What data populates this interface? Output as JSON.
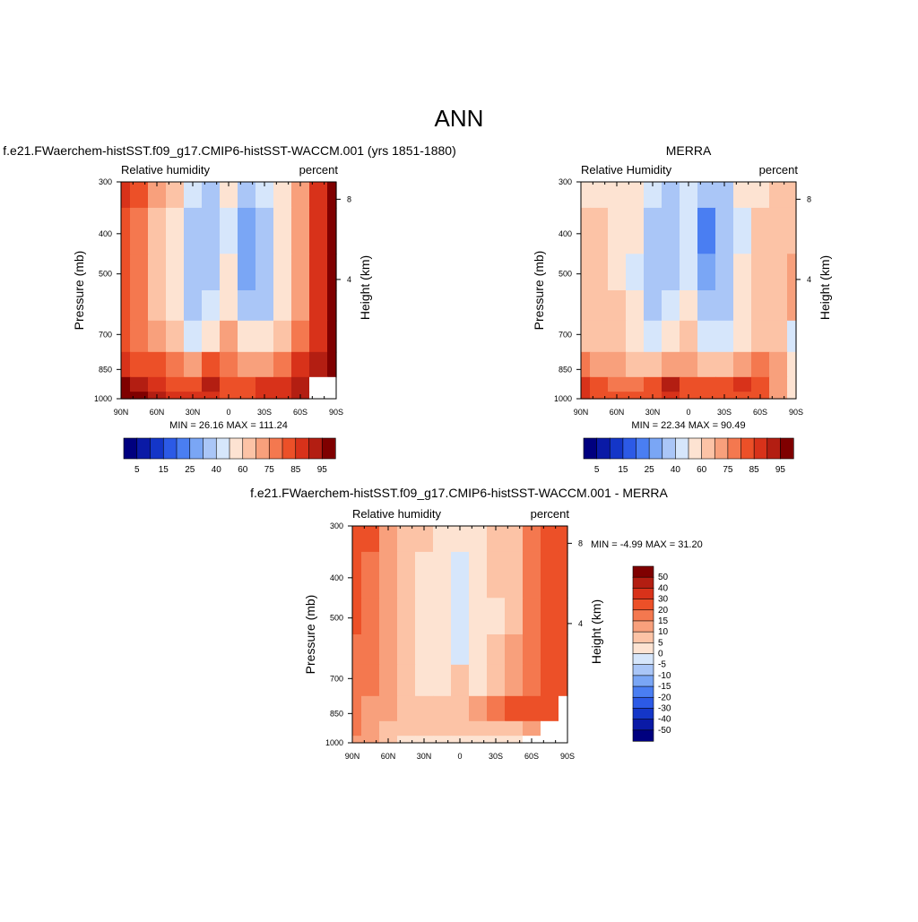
{
  "figure": {
    "title": "ANN"
  },
  "palettes": {
    "abs": [
      "#00007f",
      "#0a1aa6",
      "#1436c8",
      "#2c5ae6",
      "#4a7ef2",
      "#7aa6f5",
      "#aac6f7",
      "#d6e6fb",
      "#fde3d2",
      "#fcc3a6",
      "#f8a07c",
      "#f4784f",
      "#ec5028",
      "#d8321a",
      "#b31e12",
      "#7f0000"
    ],
    "diff": [
      "#00007f",
      "#0a1aa6",
      "#1436c8",
      "#2c5ae6",
      "#4a7ef2",
      "#7aa6f5",
      "#aac6f7",
      "#d6e6fb",
      "#fde3d2",
      "#fcc3a6",
      "#f8a07c",
      "#f4784f",
      "#ec5028",
      "#d8321a",
      "#b31e12",
      "#7f0000"
    ]
  },
  "chart_data": [
    {
      "type": "heatmap",
      "title": "f.e21.FWaerchem-histSST.f09_g17.CMIP6-histSST-WACCM.001 (yrs 1851-1880)",
      "left_label": "Relative humidity",
      "right_label": "percent",
      "ylabel": "Pressure (mb)",
      "ylabel_right": "Height (km)",
      "x_ticks": [
        "90N",
        "60N",
        "30N",
        "0",
        "30S",
        "60S",
        "90S"
      ],
      "y_ticks": [
        "300",
        "400",
        "500",
        "700",
        "850",
        "1000"
      ],
      "height_ticks": [
        "8",
        "4"
      ],
      "stats": "MIN =  26.16  MAX = 111.24",
      "colorbar_labels": [
        "5",
        "15",
        "25",
        "40",
        "60",
        "75",
        "85",
        "95"
      ],
      "x": [
        90,
        75,
        60,
        45,
        30,
        15,
        0,
        -15,
        -30,
        -45,
        -60,
        -75,
        -90
      ],
      "y": [
        300,
        400,
        500,
        600,
        700,
        850,
        925,
        1000
      ],
      "z": [
        [
          85,
          80,
          70,
          62,
          45,
          35,
          55,
          30,
          40,
          55,
          70,
          85,
          95
        ],
        [
          82,
          78,
          68,
          58,
          35,
          30,
          48,
          25,
          32,
          52,
          70,
          85,
          95
        ],
        [
          80,
          76,
          66,
          56,
          32,
          35,
          50,
          28,
          30,
          52,
          72,
          86,
          95
        ],
        [
          80,
          76,
          66,
          58,
          34,
          42,
          55,
          36,
          38,
          55,
          74,
          86,
          95
        ],
        [
          82,
          78,
          70,
          64,
          46,
          58,
          70,
          50,
          50,
          62,
          78,
          88,
          95
        ],
        [
          88,
          84,
          80,
          76,
          72,
          80,
          78,
          70,
          72,
          78,
          85,
          90,
          95
        ],
        [
          95,
          90,
          86,
          82,
          84,
          90,
          84,
          82,
          86,
          88,
          90,
          null,
          null
        ],
        [
          100,
          96,
          90,
          86,
          86,
          88,
          84,
          84,
          86,
          88,
          90,
          null,
          null
        ]
      ]
    },
    {
      "type": "heatmap",
      "title": "MERRA",
      "left_label": "Relative Humidity",
      "right_label": "percent",
      "ylabel": "Pressure (mb)",
      "ylabel_right": "Height (km)",
      "x_ticks": [
        "90N",
        "60N",
        "30N",
        "0",
        "30S",
        "60S",
        "90S"
      ],
      "y_ticks": [
        "300",
        "400",
        "500",
        "700",
        "850",
        "1000"
      ],
      "height_ticks": [
        "8",
        "4"
      ],
      "stats": "MIN =  22.34  MAX =  90.49",
      "colorbar_labels": [
        "5",
        "15",
        "25",
        "40",
        "60",
        "75",
        "85",
        "95"
      ],
      "x": [
        90,
        75,
        60,
        45,
        30,
        15,
        0,
        -15,
        -30,
        -45,
        -60,
        -75,
        -90
      ],
      "y": [
        300,
        400,
        500,
        600,
        700,
        850,
        925,
        1000
      ],
      "z": [
        [
          55,
          58,
          58,
          52,
          42,
          38,
          45,
          35,
          38,
          50,
          58,
          60,
          62
        ],
        [
          60,
          60,
          58,
          50,
          35,
          30,
          42,
          22,
          32,
          48,
          60,
          62,
          68
        ],
        [
          62,
          62,
          58,
          48,
          32,
          35,
          45,
          25,
          30,
          50,
          62,
          65,
          70
        ],
        [
          64,
          62,
          60,
          50,
          35,
          40,
          50,
          30,
          35,
          52,
          64,
          66,
          72
        ],
        [
          66,
          64,
          62,
          56,
          42,
          52,
          62,
          42,
          44,
          58,
          66,
          68,
          45
        ],
        [
          78,
          74,
          70,
          66,
          62,
          70,
          70,
          62,
          64,
          70,
          76,
          72,
          50
        ],
        [
          85,
          80,
          78,
          76,
          84,
          90,
          84,
          82,
          84,
          86,
          82,
          70,
          50
        ],
        [
          86,
          84,
          82,
          80,
          82,
          86,
          82,
          82,
          84,
          84,
          84,
          72,
          50
        ]
      ]
    },
    {
      "type": "heatmap",
      "title": "f.e21.FWaerchem-histSST.f09_g17.CMIP6-histSST-WACCM.001 - MERRA",
      "left_label": "Relative humidity",
      "right_label": "percent",
      "ylabel": "Pressure (mb)",
      "ylabel_right": "Height (km)",
      "x_ticks": [
        "90N",
        "60N",
        "30N",
        "0",
        "30S",
        "60S",
        "90S"
      ],
      "y_ticks": [
        "300",
        "400",
        "500",
        "700",
        "850",
        "1000"
      ],
      "height_ticks": [
        "8",
        "4"
      ],
      "stats": "MIN =  -4.99  MAX =  31.20",
      "colorbar_labels": [
        "50",
        "40",
        "30",
        "20",
        "15",
        "10",
        "5",
        "0",
        "-5",
        "-10",
        "-15",
        "-20",
        "-30",
        "-40",
        "-50"
      ],
      "x": [
        90,
        75,
        60,
        45,
        30,
        15,
        0,
        -15,
        -30,
        -45,
        -60,
        -75,
        -90
      ],
      "y": [
        300,
        400,
        500,
        600,
        700,
        850,
        925,
        1000
      ],
      "z": [
        [
          24,
          20,
          13,
          8,
          5,
          4,
          1,
          3,
          5,
          8,
          18,
          24,
          24
        ],
        [
          22,
          18,
          12,
          8,
          4,
          3,
          -2,
          3,
          5,
          8,
          16,
          24,
          24
        ],
        [
          20,
          16,
          12,
          8,
          4,
          2,
          -3,
          1,
          4,
          8,
          16,
          24,
          24
        ],
        [
          18,
          16,
          12,
          8,
          1,
          2,
          -3,
          2,
          6,
          10,
          18,
          24,
          24
        ],
        [
          18,
          16,
          12,
          8,
          2,
          4,
          5,
          4,
          8,
          12,
          18,
          24,
          24
        ],
        [
          16,
          14,
          10,
          8,
          8,
          9,
          8,
          10,
          16,
          20,
          20,
          24,
          null
        ],
        [
          18,
          12,
          8,
          8,
          6,
          6,
          5,
          5,
          6,
          8,
          12,
          null,
          null
        ],
        [
          14,
          10,
          6,
          2,
          4,
          4,
          3,
          4,
          4,
          2,
          null,
          null,
          null
        ]
      ]
    }
  ]
}
